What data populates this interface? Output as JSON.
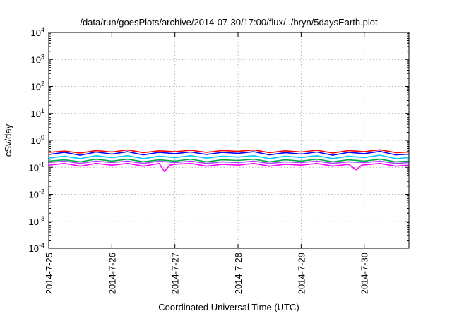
{
  "chart_data": {
    "type": "line",
    "title": "/data/run/goesPlots/archive/2014-07-30/17:00/flux/../bryn/5daysEarth.plot",
    "xlabel": "Coordinated Universal Time (UTC)",
    "ylabel": "cSv/day",
    "yscale": "log",
    "ylim": [
      0.0001,
      10000
    ],
    "xlim": [
      "2014-07-25T00:00",
      "2014-07-30T17:00"
    ],
    "grid": true,
    "legend": "none",
    "x_ticks": [
      {
        "x": "2014-07-25T00:00",
        "label": "2014-7-25"
      },
      {
        "x": "2014-07-26T00:00",
        "label": "2014-7-26"
      },
      {
        "x": "2014-07-27T00:00",
        "label": "2014-7-27"
      },
      {
        "x": "2014-07-28T00:00",
        "label": "2014-7-28"
      },
      {
        "x": "2014-07-29T00:00",
        "label": "2014-7-29"
      },
      {
        "x": "2014-07-30T00:00",
        "label": "2014-7-30"
      }
    ],
    "y_ticks": [
      {
        "value": 0.0001,
        "base": "10",
        "exp": "-4"
      },
      {
        "value": 0.001,
        "base": "10",
        "exp": "-3"
      },
      {
        "value": 0.01,
        "base": "10",
        "exp": "-2"
      },
      {
        "value": 0.1,
        "base": "10",
        "exp": "-1"
      },
      {
        "value": 1,
        "base": "10",
        "exp": "0"
      },
      {
        "value": 10,
        "base": "10",
        "exp": "1"
      },
      {
        "value": 100,
        "base": "10",
        "exp": "2"
      },
      {
        "value": 1000,
        "base": "10",
        "exp": "3"
      },
      {
        "value": 10000,
        "base": "10",
        "exp": "4"
      }
    ],
    "series": [
      {
        "color": "#ff0000",
        "values": [
          {
            "x": "2014-07-25T00:00",
            "y": 0.36
          },
          {
            "x": "2014-07-25T06:00",
            "y": 0.4
          },
          {
            "x": "2014-07-25T12:00",
            "y": 0.34
          },
          {
            "x": "2014-07-25T18:00",
            "y": 0.42
          },
          {
            "x": "2014-07-26T00:00",
            "y": 0.37
          },
          {
            "x": "2014-07-26T06:00",
            "y": 0.44
          },
          {
            "x": "2014-07-26T12:00",
            "y": 0.35
          },
          {
            "x": "2014-07-26T18:00",
            "y": 0.41
          },
          {
            "x": "2014-07-27T00:00",
            "y": 0.38
          },
          {
            "x": "2014-07-27T06:00",
            "y": 0.43
          },
          {
            "x": "2014-07-27T12:00",
            "y": 0.36
          },
          {
            "x": "2014-07-27T18:00",
            "y": 0.42
          },
          {
            "x": "2014-07-28T00:00",
            "y": 0.39
          },
          {
            "x": "2014-07-28T06:00",
            "y": 0.44
          },
          {
            "x": "2014-07-28T12:00",
            "y": 0.35
          },
          {
            "x": "2014-07-28T18:00",
            "y": 0.41
          },
          {
            "x": "2014-07-29T00:00",
            "y": 0.37
          },
          {
            "x": "2014-07-29T06:00",
            "y": 0.43
          },
          {
            "x": "2014-07-29T12:00",
            "y": 0.34
          },
          {
            "x": "2014-07-29T18:00",
            "y": 0.42
          },
          {
            "x": "2014-07-30T00:00",
            "y": 0.38
          },
          {
            "x": "2014-07-30T06:00",
            "y": 0.45
          },
          {
            "x": "2014-07-30T12:00",
            "y": 0.35
          },
          {
            "x": "2014-07-30T17:00",
            "y": 0.37
          }
        ]
      },
      {
        "color": "#0000ff",
        "values": [
          {
            "x": "2014-07-25T00:00",
            "y": 0.3
          },
          {
            "x": "2014-07-25T06:00",
            "y": 0.36
          },
          {
            "x": "2014-07-25T12:00",
            "y": 0.28
          },
          {
            "x": "2014-07-25T18:00",
            "y": 0.37
          },
          {
            "x": "2014-07-26T00:00",
            "y": 0.31
          },
          {
            "x": "2014-07-26T06:00",
            "y": 0.38
          },
          {
            "x": "2014-07-26T12:00",
            "y": 0.29
          },
          {
            "x": "2014-07-26T18:00",
            "y": 0.36
          },
          {
            "x": "2014-07-27T00:00",
            "y": 0.32
          },
          {
            "x": "2014-07-27T06:00",
            "y": 0.37
          },
          {
            "x": "2014-07-27T12:00",
            "y": 0.3
          },
          {
            "x": "2014-07-27T18:00",
            "y": 0.36
          },
          {
            "x": "2014-07-28T00:00",
            "y": 0.33
          },
          {
            "x": "2014-07-28T06:00",
            "y": 0.38
          },
          {
            "x": "2014-07-28T12:00",
            "y": 0.29
          },
          {
            "x": "2014-07-28T18:00",
            "y": 0.35
          },
          {
            "x": "2014-07-29T00:00",
            "y": 0.31
          },
          {
            "x": "2014-07-29T06:00",
            "y": 0.37
          },
          {
            "x": "2014-07-29T12:00",
            "y": 0.28
          },
          {
            "x": "2014-07-29T18:00",
            "y": 0.36
          },
          {
            "x": "2014-07-30T00:00",
            "y": 0.32
          },
          {
            "x": "2014-07-30T06:00",
            "y": 0.39
          },
          {
            "x": "2014-07-30T12:00",
            "y": 0.29
          },
          {
            "x": "2014-07-30T17:00",
            "y": 0.31
          }
        ]
      },
      {
        "color": "#00c8ff",
        "values": [
          {
            "x": "2014-07-25T00:00",
            "y": 0.22
          },
          {
            "x": "2014-07-25T06:00",
            "y": 0.26
          },
          {
            "x": "2014-07-25T12:00",
            "y": 0.21
          },
          {
            "x": "2014-07-25T18:00",
            "y": 0.27
          },
          {
            "x": "2014-07-26T00:00",
            "y": 0.23
          },
          {
            "x": "2014-07-26T06:00",
            "y": 0.27
          },
          {
            "x": "2014-07-26T12:00",
            "y": 0.21
          },
          {
            "x": "2014-07-26T18:00",
            "y": 0.26
          },
          {
            "x": "2014-07-27T00:00",
            "y": 0.23
          },
          {
            "x": "2014-07-27T06:00",
            "y": 0.27
          },
          {
            "x": "2014-07-27T12:00",
            "y": 0.22
          },
          {
            "x": "2014-07-27T18:00",
            "y": 0.26
          },
          {
            "x": "2014-07-28T00:00",
            "y": 0.24
          },
          {
            "x": "2014-07-28T06:00",
            "y": 0.27
          },
          {
            "x": "2014-07-28T12:00",
            "y": 0.21
          },
          {
            "x": "2014-07-28T18:00",
            "y": 0.26
          },
          {
            "x": "2014-07-29T00:00",
            "y": 0.23
          },
          {
            "x": "2014-07-29T06:00",
            "y": 0.27
          },
          {
            "x": "2014-07-29T12:00",
            "y": 0.21
          },
          {
            "x": "2014-07-29T18:00",
            "y": 0.26
          },
          {
            "x": "2014-07-30T00:00",
            "y": 0.23
          },
          {
            "x": "2014-07-30T06:00",
            "y": 0.28
          },
          {
            "x": "2014-07-30T12:00",
            "y": 0.21
          },
          {
            "x": "2014-07-30T17:00",
            "y": 0.23
          }
        ]
      },
      {
        "color": "#00aa44",
        "values": [
          {
            "x": "2014-07-25T00:00",
            "y": 0.17
          },
          {
            "x": "2014-07-25T06:00",
            "y": 0.19
          },
          {
            "x": "2014-07-25T12:00",
            "y": 0.16
          },
          {
            "x": "2014-07-25T18:00",
            "y": 0.2
          },
          {
            "x": "2014-07-26T00:00",
            "y": 0.17
          },
          {
            "x": "2014-07-26T06:00",
            "y": 0.2
          },
          {
            "x": "2014-07-26T12:00",
            "y": 0.16
          },
          {
            "x": "2014-07-26T18:00",
            "y": 0.19
          },
          {
            "x": "2014-07-27T00:00",
            "y": 0.17
          },
          {
            "x": "2014-07-27T06:00",
            "y": 0.2
          },
          {
            "x": "2014-07-27T12:00",
            "y": 0.16
          },
          {
            "x": "2014-07-27T18:00",
            "y": 0.19
          },
          {
            "x": "2014-07-28T00:00",
            "y": 0.18
          },
          {
            "x": "2014-07-28T06:00",
            "y": 0.2
          },
          {
            "x": "2014-07-28T12:00",
            "y": 0.16
          },
          {
            "x": "2014-07-28T18:00",
            "y": 0.19
          },
          {
            "x": "2014-07-29T00:00",
            "y": 0.17
          },
          {
            "x": "2014-07-29T06:00",
            "y": 0.2
          },
          {
            "x": "2014-07-29T12:00",
            "y": 0.16
          },
          {
            "x": "2014-07-29T18:00",
            "y": 0.19
          },
          {
            "x": "2014-07-30T00:00",
            "y": 0.17
          },
          {
            "x": "2014-07-30T06:00",
            "y": 0.2
          },
          {
            "x": "2014-07-30T12:00",
            "y": 0.16
          },
          {
            "x": "2014-07-30T17:00",
            "y": 0.17
          }
        ]
      },
      {
        "color": "#aa44ff",
        "values": [
          {
            "x": "2014-07-25T00:00",
            "y": 0.15
          },
          {
            "x": "2014-07-25T06:00",
            "y": 0.17
          },
          {
            "x": "2014-07-25T12:00",
            "y": 0.14
          },
          {
            "x": "2014-07-25T18:00",
            "y": 0.17
          },
          {
            "x": "2014-07-26T00:00",
            "y": 0.15
          },
          {
            "x": "2014-07-26T06:00",
            "y": 0.17
          },
          {
            "x": "2014-07-26T12:00",
            "y": 0.14
          },
          {
            "x": "2014-07-26T18:00",
            "y": 0.17
          },
          {
            "x": "2014-07-27T00:00",
            "y": 0.15
          },
          {
            "x": "2014-07-27T06:00",
            "y": 0.17
          },
          {
            "x": "2014-07-27T12:00",
            "y": 0.14
          },
          {
            "x": "2014-07-27T18:00",
            "y": 0.16
          },
          {
            "x": "2014-07-28T00:00",
            "y": 0.15
          },
          {
            "x": "2014-07-28T06:00",
            "y": 0.17
          },
          {
            "x": "2014-07-28T12:00",
            "y": 0.14
          },
          {
            "x": "2014-07-28T18:00",
            "y": 0.16
          },
          {
            "x": "2014-07-29T00:00",
            "y": 0.15
          },
          {
            "x": "2014-07-29T06:00",
            "y": 0.17
          },
          {
            "x": "2014-07-29T12:00",
            "y": 0.14
          },
          {
            "x": "2014-07-29T18:00",
            "y": 0.16
          },
          {
            "x": "2014-07-30T00:00",
            "y": 0.15
          },
          {
            "x": "2014-07-30T06:00",
            "y": 0.17
          },
          {
            "x": "2014-07-30T12:00",
            "y": 0.14
          },
          {
            "x": "2014-07-30T17:00",
            "y": 0.15
          }
        ]
      },
      {
        "color": "#ff00ff",
        "values": [
          {
            "x": "2014-07-25T00:00",
            "y": 0.12
          },
          {
            "x": "2014-07-25T06:00",
            "y": 0.14
          },
          {
            "x": "2014-07-25T12:00",
            "y": 0.11
          },
          {
            "x": "2014-07-25T18:00",
            "y": 0.14
          },
          {
            "x": "2014-07-26T00:00",
            "y": 0.12
          },
          {
            "x": "2014-07-26T06:00",
            "y": 0.14
          },
          {
            "x": "2014-07-26T12:00",
            "y": 0.11
          },
          {
            "x": "2014-07-26T18:00",
            "y": 0.14
          },
          {
            "x": "2014-07-26T20:00",
            "y": 0.07
          },
          {
            "x": "2014-07-26T22:00",
            "y": 0.12
          },
          {
            "x": "2014-07-27T00:00",
            "y": 0.13
          },
          {
            "x": "2014-07-27T06:00",
            "y": 0.14
          },
          {
            "x": "2014-07-27T12:00",
            "y": 0.11
          },
          {
            "x": "2014-07-27T18:00",
            "y": 0.13
          },
          {
            "x": "2014-07-28T00:00",
            "y": 0.12
          },
          {
            "x": "2014-07-28T06:00",
            "y": 0.14
          },
          {
            "x": "2014-07-28T12:00",
            "y": 0.11
          },
          {
            "x": "2014-07-28T18:00",
            "y": 0.13
          },
          {
            "x": "2014-07-29T00:00",
            "y": 0.12
          },
          {
            "x": "2014-07-29T06:00",
            "y": 0.14
          },
          {
            "x": "2014-07-29T12:00",
            "y": 0.11
          },
          {
            "x": "2014-07-29T18:00",
            "y": 0.13
          },
          {
            "x": "2014-07-29T21:00",
            "y": 0.08
          },
          {
            "x": "2014-07-29T23:00",
            "y": 0.12
          },
          {
            "x": "2014-07-30T06:00",
            "y": 0.14
          },
          {
            "x": "2014-07-30T12:00",
            "y": 0.11
          },
          {
            "x": "2014-07-30T17:00",
            "y": 0.12
          }
        ]
      }
    ]
  }
}
